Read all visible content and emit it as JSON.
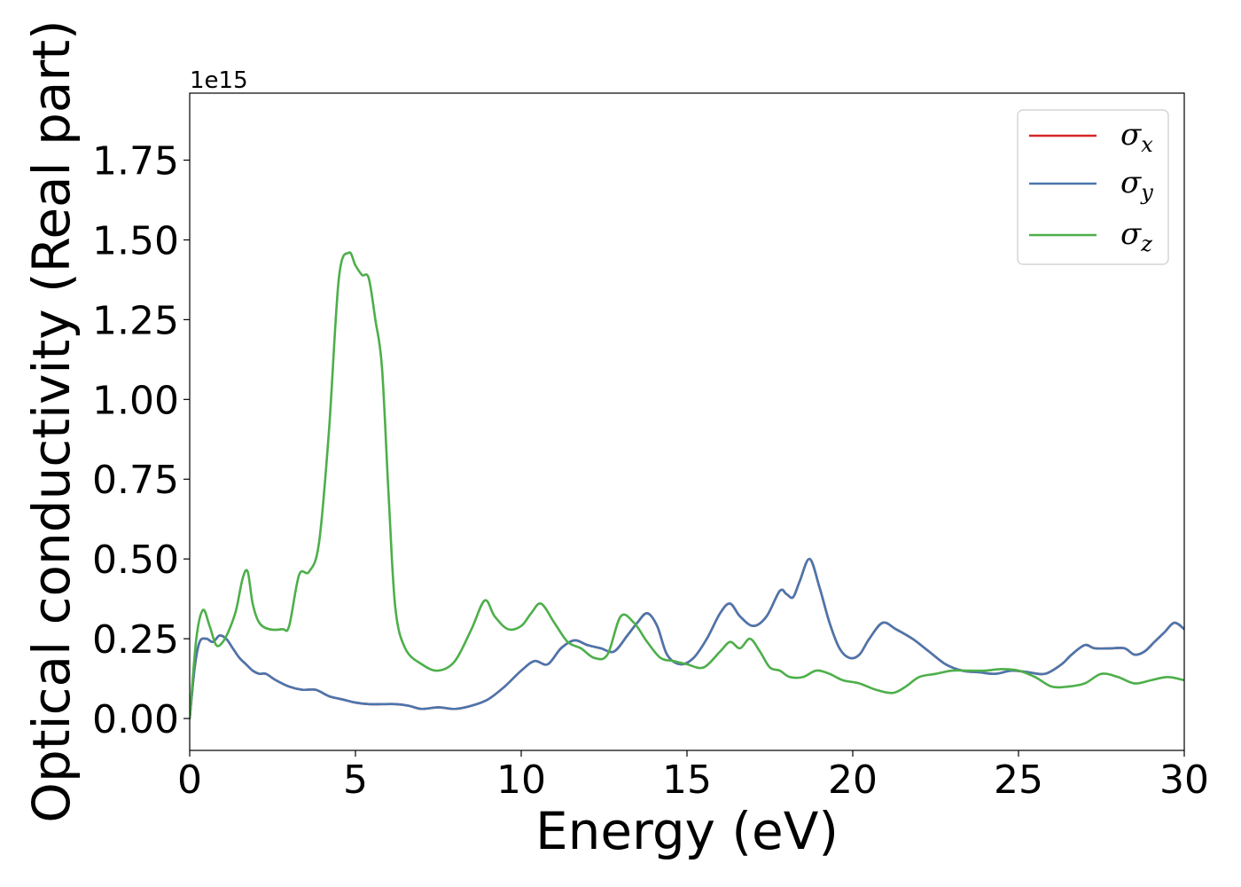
{
  "chart_data": {
    "type": "line",
    "title": "",
    "xlabel": "Energy (eV)",
    "ylabel": "Optical conductivity (Real part)",
    "y_offset_label": "1e15",
    "xlim": [
      0,
      30
    ],
    "ylim": [
      -0.1,
      1.96
    ],
    "xticks": [
      0,
      5,
      10,
      15,
      20,
      25,
      30
    ],
    "xtick_labels": [
      "0",
      "5",
      "10",
      "15",
      "20",
      "25",
      "30"
    ],
    "yticks": [
      0.0,
      0.25,
      0.5,
      0.75,
      1.0,
      1.25,
      1.5,
      1.75
    ],
    "ytick_labels": [
      "0.00",
      "0.25",
      "0.50",
      "0.75",
      "1.00",
      "1.25",
      "1.50",
      "1.75"
    ],
    "grid": false,
    "legend_position": "top-right",
    "series": [
      {
        "name": "σ",
        "subscript": "x",
        "color": "#d62728",
        "x": [
          0,
          0.15,
          0.3,
          0.5,
          0.7,
          0.9,
          1.1,
          1.3,
          1.5,
          1.7,
          1.9,
          2.1,
          2.3,
          2.6,
          3.0,
          3.4,
          3.8,
          4.2,
          4.6,
          5.0,
          5.4,
          5.8,
          6.2,
          6.6,
          7.0,
          7.5,
          8.0,
          8.5,
          9.0,
          9.5,
          10.0,
          10.4,
          10.8,
          11.2,
          11.6,
          12.0,
          12.4,
          12.8,
          13.2,
          13.5,
          13.8,
          14.1,
          14.4,
          14.8,
          15.2,
          15.6,
          16.0,
          16.3,
          16.6,
          17.0,
          17.4,
          17.8,
          18.0,
          18.2,
          18.4,
          18.7,
          19.0,
          19.3,
          19.6,
          19.9,
          20.2,
          20.5,
          20.9,
          21.3,
          21.8,
          22.3,
          22.8,
          23.3,
          23.8,
          24.3,
          24.8,
          25.3,
          25.8,
          26.3,
          26.6,
          27.0,
          27.3,
          27.8,
          28.2,
          28.5,
          28.8,
          29.1,
          29.4,
          29.7,
          30.0
        ],
        "y": [
          0.0,
          0.16,
          0.24,
          0.25,
          0.24,
          0.26,
          0.25,
          0.22,
          0.19,
          0.17,
          0.15,
          0.14,
          0.14,
          0.12,
          0.1,
          0.09,
          0.09,
          0.07,
          0.06,
          0.05,
          0.045,
          0.045,
          0.045,
          0.04,
          0.03,
          0.035,
          0.03,
          0.04,
          0.06,
          0.1,
          0.15,
          0.18,
          0.17,
          0.22,
          0.245,
          0.23,
          0.22,
          0.21,
          0.26,
          0.3,
          0.33,
          0.29,
          0.2,
          0.17,
          0.19,
          0.25,
          0.33,
          0.36,
          0.32,
          0.29,
          0.32,
          0.4,
          0.39,
          0.38,
          0.43,
          0.5,
          0.41,
          0.3,
          0.22,
          0.19,
          0.2,
          0.25,
          0.3,
          0.28,
          0.25,
          0.21,
          0.17,
          0.15,
          0.145,
          0.14,
          0.15,
          0.145,
          0.14,
          0.17,
          0.2,
          0.23,
          0.22,
          0.22,
          0.22,
          0.2,
          0.21,
          0.24,
          0.27,
          0.3,
          0.28
        ]
      },
      {
        "name": "σ",
        "subscript": "y",
        "color": "#4a76ad",
        "x": [
          0,
          0.15,
          0.3,
          0.5,
          0.7,
          0.9,
          1.1,
          1.3,
          1.5,
          1.7,
          1.9,
          2.1,
          2.3,
          2.6,
          3.0,
          3.4,
          3.8,
          4.2,
          4.6,
          5.0,
          5.4,
          5.8,
          6.2,
          6.6,
          7.0,
          7.5,
          8.0,
          8.5,
          9.0,
          9.5,
          10.0,
          10.4,
          10.8,
          11.2,
          11.6,
          12.0,
          12.4,
          12.8,
          13.2,
          13.5,
          13.8,
          14.1,
          14.4,
          14.8,
          15.2,
          15.6,
          16.0,
          16.3,
          16.6,
          17.0,
          17.4,
          17.8,
          18.0,
          18.2,
          18.4,
          18.7,
          19.0,
          19.3,
          19.6,
          19.9,
          20.2,
          20.5,
          20.9,
          21.3,
          21.8,
          22.3,
          22.8,
          23.3,
          23.8,
          24.3,
          24.8,
          25.3,
          25.8,
          26.3,
          26.6,
          27.0,
          27.3,
          27.8,
          28.2,
          28.5,
          28.8,
          29.1,
          29.4,
          29.7,
          30.0
        ],
        "y": [
          0.0,
          0.16,
          0.24,
          0.25,
          0.24,
          0.26,
          0.25,
          0.22,
          0.19,
          0.17,
          0.15,
          0.14,
          0.14,
          0.12,
          0.1,
          0.09,
          0.09,
          0.07,
          0.06,
          0.05,
          0.045,
          0.045,
          0.045,
          0.04,
          0.03,
          0.035,
          0.03,
          0.04,
          0.06,
          0.1,
          0.15,
          0.18,
          0.17,
          0.22,
          0.245,
          0.23,
          0.22,
          0.21,
          0.26,
          0.3,
          0.33,
          0.29,
          0.2,
          0.17,
          0.19,
          0.25,
          0.33,
          0.36,
          0.32,
          0.29,
          0.32,
          0.4,
          0.39,
          0.38,
          0.43,
          0.5,
          0.41,
          0.3,
          0.22,
          0.19,
          0.2,
          0.25,
          0.3,
          0.28,
          0.25,
          0.21,
          0.17,
          0.15,
          0.145,
          0.14,
          0.15,
          0.145,
          0.14,
          0.17,
          0.2,
          0.23,
          0.22,
          0.22,
          0.22,
          0.2,
          0.21,
          0.24,
          0.27,
          0.3,
          0.28
        ]
      },
      {
        "name": "σ",
        "subscript": "z",
        "color": "#4daf4a",
        "x": [
          0,
          0.2,
          0.4,
          0.6,
          0.8,
          1.0,
          1.2,
          1.4,
          1.6,
          1.75,
          1.9,
          2.1,
          2.4,
          2.8,
          3.0,
          3.3,
          3.6,
          3.9,
          4.2,
          4.5,
          4.8,
          5.0,
          5.2,
          5.4,
          5.6,
          5.8,
          6.0,
          6.2,
          6.5,
          7.0,
          7.5,
          8.0,
          8.5,
          8.9,
          9.2,
          9.6,
          10.0,
          10.3,
          10.6,
          11.0,
          11.4,
          11.8,
          12.2,
          12.6,
          13.0,
          13.4,
          13.8,
          14.2,
          14.6,
          15.0,
          15.5,
          16.0,
          16.3,
          16.6,
          16.9,
          17.2,
          17.5,
          17.8,
          18.1,
          18.5,
          18.9,
          19.3,
          19.7,
          20.2,
          20.7,
          21.2,
          21.6,
          22.0,
          22.5,
          23.0,
          23.5,
          24.0,
          24.5,
          25.0,
          25.5,
          26.0,
          26.5,
          27.0,
          27.5,
          28.0,
          28.5,
          29.0,
          29.5,
          30.0
        ],
        "y": [
          0.0,
          0.25,
          0.34,
          0.29,
          0.23,
          0.24,
          0.28,
          0.34,
          0.44,
          0.46,
          0.36,
          0.3,
          0.28,
          0.28,
          0.29,
          0.45,
          0.46,
          0.55,
          0.9,
          1.38,
          1.46,
          1.42,
          1.39,
          1.38,
          1.25,
          1.1,
          0.7,
          0.35,
          0.22,
          0.17,
          0.15,
          0.18,
          0.28,
          0.37,
          0.32,
          0.28,
          0.29,
          0.33,
          0.36,
          0.3,
          0.24,
          0.22,
          0.19,
          0.2,
          0.32,
          0.3,
          0.24,
          0.19,
          0.18,
          0.17,
          0.16,
          0.21,
          0.24,
          0.22,
          0.25,
          0.21,
          0.16,
          0.15,
          0.13,
          0.13,
          0.15,
          0.14,
          0.12,
          0.11,
          0.09,
          0.08,
          0.1,
          0.13,
          0.14,
          0.15,
          0.15,
          0.15,
          0.155,
          0.15,
          0.13,
          0.1,
          0.1,
          0.11,
          0.14,
          0.13,
          0.11,
          0.12,
          0.13,
          0.12
        ]
      }
    ]
  }
}
